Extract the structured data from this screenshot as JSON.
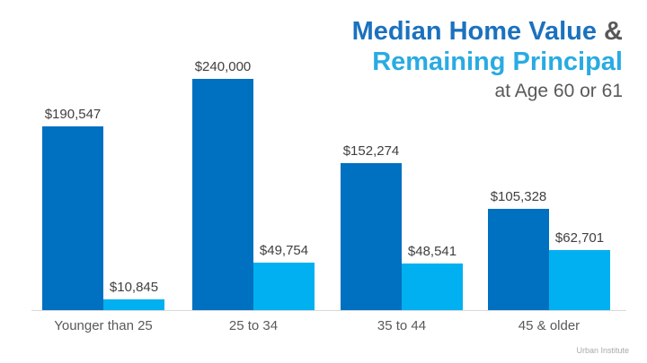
{
  "title": {
    "line1_blue": "Median Home Value",
    "line1_amp": " &",
    "line2": "Remaining Principal",
    "line3": "at Age 60 or 61"
  },
  "footer": {
    "source": "Urban Institute"
  },
  "colors": {
    "home_value_bar": "#0070C0",
    "principal_bar": "#00B0F0",
    "title_blue": "#1B71BE",
    "title_light_blue": "#29ABE2",
    "subtitle_gray": "#595959",
    "value_label_gray": "#404040",
    "axis_gray": "#D9D9D9",
    "source_gray": "#A9A9A9"
  },
  "chart_data": {
    "type": "bar",
    "title": "Median Home Value & Remaining Principal at Age 60 or 61",
    "categories": [
      "Younger than 25",
      "25 to 34",
      "35 to 44",
      "45 & older"
    ],
    "series": [
      {
        "name": "Median Home Value",
        "color": "#0070C0",
        "values": [
          190547,
          240000,
          152274,
          105328
        ],
        "labels": [
          "$190,547",
          "$240,000",
          "$152,274",
          "$105,328"
        ]
      },
      {
        "name": "Remaining Principal",
        "color": "#00B0F0",
        "values": [
          10845,
          49754,
          48541,
          62701
        ],
        "labels": [
          "$10,845",
          "$49,754",
          "$48,541",
          "$62,701"
        ]
      }
    ],
    "xlabel": "",
    "ylabel": "",
    "ylim": [
      0,
      240000
    ],
    "grid": false,
    "legend": "none",
    "value_labels_shown": true,
    "source": "Urban Institute"
  }
}
